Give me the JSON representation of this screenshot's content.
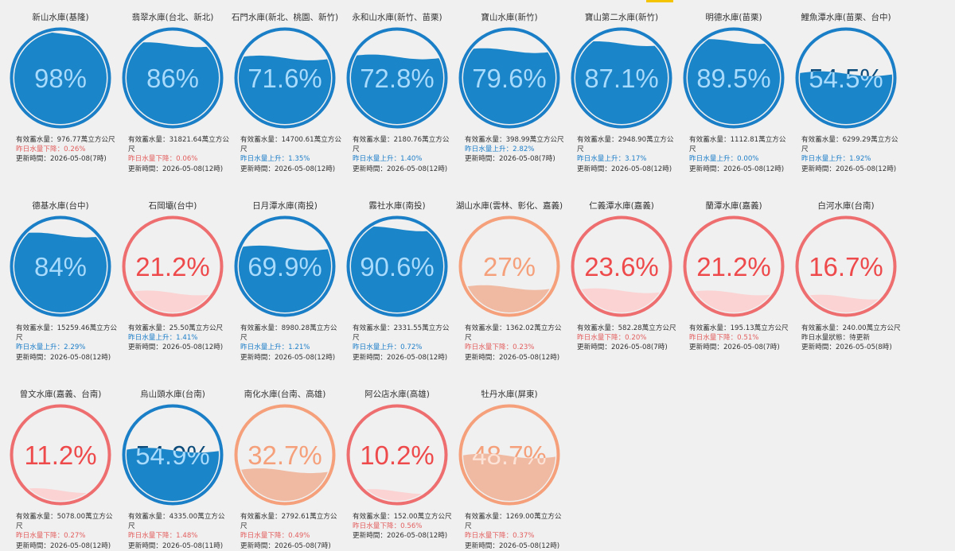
{
  "reservoirs": [
    {
      "name": "新山水庫(基隆)",
      "percent": "98%",
      "level": 0.98,
      "status": "high",
      "storage": "有效蓄水量：976.77萬立方公尺",
      "change": "昨日水量下降：0.26%",
      "trend": "down",
      "updated": "更新時間：2026-05-08(7時)"
    },
    {
      "name": "翡翠水庫(台北、新北)",
      "percent": "86%",
      "level": 0.86,
      "status": "high",
      "storage": "有效蓄水量：31821.64萬立方公尺",
      "change": "昨日水量下降：0.06%",
      "trend": "down",
      "updated": "更新時間：2026-05-08(12時)"
    },
    {
      "name": "石門水庫(新北、桃園、新竹)",
      "percent": "71.6%",
      "level": 0.716,
      "status": "high",
      "storage": "有效蓄水量：14700.61萬立方公尺",
      "change": "昨日水量上升：1.35%",
      "trend": "up",
      "updated": "更新時間：2026-05-08(12時)"
    },
    {
      "name": "永和山水庫(新竹、苗栗)",
      "percent": "72.8%",
      "level": 0.728,
      "status": "high",
      "storage": "有效蓄水量：2180.76萬立方公尺",
      "change": "昨日水量上升：1.40%",
      "trend": "up",
      "updated": "更新時間：2026-05-08(12時)"
    },
    {
      "name": "寶山水庫(新竹)",
      "percent": "79.6%",
      "level": 0.796,
      "status": "high",
      "storage": "有效蓄水量：398.99萬立方公尺",
      "change": "昨日水量上升：2.82%",
      "trend": "up",
      "updated": "更新時間：2026-05-08(7時)"
    },
    {
      "name": "寶山第二水庫(新竹)",
      "percent": "87.1%",
      "level": 0.871,
      "status": "high",
      "storage": "有效蓄水量：2948.90萬立方公尺",
      "change": "昨日水量上升：3.17%",
      "trend": "up",
      "updated": "更新時間：2026-05-08(12時)"
    },
    {
      "name": "明德水庫(苗栗)",
      "percent": "89.5%",
      "level": 0.895,
      "status": "high",
      "storage": "有效蓄水量：1112.81萬立方公尺",
      "change": "昨日水量上升：0.00%",
      "trend": "up",
      "updated": "更新時間：2026-05-08(12時)"
    },
    {
      "name": "鯉魚潭水庫(苗栗、台中)",
      "percent": "54.5%",
      "level": 0.545,
      "status": "high",
      "storage": "有效蓄水量：6299.29萬立方公尺",
      "change": "昨日水量上升：1.92%",
      "trend": "up",
      "updated": "更新時間：2026-05-08(12時)"
    },
    {
      "name": "德基水庫(台中)",
      "percent": "84%",
      "level": 0.84,
      "status": "high",
      "storage": "有效蓄水量：15259.46萬立方公尺",
      "change": "昨日水量上升：2.29%",
      "trend": "up",
      "updated": "更新時間：2026-05-08(12時)"
    },
    {
      "name": "石岡壩(台中)",
      "percent": "21.2%",
      "level": 0.212,
      "status": "low",
      "storage": "有效蓄水量：25.50萬立方公尺",
      "change": "昨日水量上升：1.41%",
      "trend": "up",
      "updated": "更新時間：2026-05-08(12時)"
    },
    {
      "name": "日月潭水庫(南投)",
      "percent": "69.9%",
      "level": 0.699,
      "status": "high",
      "storage": "有效蓄水量：8980.28萬立方公尺",
      "change": "昨日水量上升：1.21%",
      "trend": "up",
      "updated": "更新時間：2026-05-08(12時)"
    },
    {
      "name": "霧社水庫(南投)",
      "percent": "90.6%",
      "level": 0.906,
      "status": "high",
      "storage": "有效蓄水量：2331.55萬立方公尺",
      "change": "昨日水量上升：0.72%",
      "trend": "up",
      "updated": "更新時間：2026-05-08(12時)"
    },
    {
      "name": "湖山水庫(雲林、彰化、嘉義)",
      "percent": "27%",
      "level": 0.27,
      "status": "warn",
      "storage": "有效蓄水量：1362.02萬立方公尺",
      "change": "昨日水量下降：0.23%",
      "trend": "down",
      "updated": "更新時間：2026-05-08(12時)"
    },
    {
      "name": "仁義潭水庫(嘉義)",
      "percent": "23.6%",
      "level": 0.236,
      "status": "low",
      "storage": "有效蓄水量：582.28萬立方公尺",
      "change": "昨日水量下降：0.20%",
      "trend": "down",
      "updated": "更新時間：2026-05-08(7時)"
    },
    {
      "name": "蘭潭水庫(嘉義)",
      "percent": "21.2%",
      "level": 0.212,
      "status": "low",
      "storage": "有效蓄水量：195.13萬立方公尺",
      "change": "昨日水量下降：0.51%",
      "trend": "down",
      "updated": "更新時間：2026-05-08(7時)"
    },
    {
      "name": "白河水庫(台南)",
      "percent": "16.7%",
      "level": 0.167,
      "status": "low",
      "storage": "有效蓄水量：240.00萬立方公尺",
      "change": "昨日水量狀態：待更新",
      "trend": "flat",
      "updated": "更新時間：2026-05-05(8時)"
    },
    {
      "name": "曾文水庫(嘉義、台南)",
      "percent": "11.2%",
      "level": 0.112,
      "status": "low",
      "storage": "有效蓄水量：5078.00萬立方公尺",
      "change": "昨日水量下降：0.27%",
      "trend": "down",
      "updated": "更新時間：2026-05-08(12時)"
    },
    {
      "name": "烏山頭水庫(台南)",
      "percent": "54.9%",
      "level": 0.549,
      "status": "high",
      "storage": "有效蓄水量：4335.00萬立方公尺",
      "change": "昨日水量下降：1.48%",
      "trend": "down",
      "updated": "更新時間：2026-05-08(11時)"
    },
    {
      "name": "南化水庫(台南、高雄)",
      "percent": "32.7%",
      "level": 0.327,
      "status": "warn",
      "storage": "有效蓄水量：2792.61萬立方公尺",
      "change": "昨日水量下降：0.49%",
      "trend": "down",
      "updated": "更新時間：2026-05-08(7時)"
    },
    {
      "name": "阿公店水庫(高雄)",
      "percent": "10.2%",
      "level": 0.102,
      "status": "low",
      "storage": "有效蓄水量：152.00萬立方公尺",
      "change": "昨日水量下降：0.56%",
      "trend": "down",
      "updated": "更新時間：2026-05-08(12時)"
    },
    {
      "name": "牡丹水庫(屏東)",
      "percent": "48.7%",
      "level": 0.487,
      "status": "warn",
      "storage": "有效蓄水量：1269.00萬立方公尺",
      "change": "昨日水量下降：0.37%",
      "trend": "down",
      "updated": "更新時間：2026-05-08(12時)"
    }
  ],
  "colors": {
    "high": {
      "ring": "#1a7fc7",
      "fill": "#1a85c9",
      "text_on_fill": "#a8dcff",
      "text_off_fill": "#0d4c7a"
    },
    "warn": {
      "ring": "#f5a07a",
      "fill": "#f0b9a2",
      "text_on_fill": "#fce3d8",
      "text_off_fill": "#f5a07a"
    },
    "low": {
      "ring": "#ee6e70",
      "fill": "#fbd3d3",
      "text_on_fill": "#ee4a4c",
      "text_off_fill": "#ee4a4c"
    },
    "up": "#1f7fc9",
    "down": "#e35f5f"
  }
}
